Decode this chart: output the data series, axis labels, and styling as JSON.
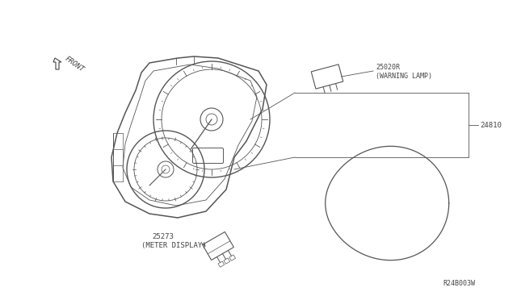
{
  "bg_color": "#ffffff",
  "line_color": "#555555",
  "text_color": "#444444",
  "part_numbers": {
    "warning_lamp": "25020R",
    "warning_lamp_desc": "(WARNING LAMP)",
    "cluster": "24810",
    "meter_display": "25273",
    "meter_display_desc": "(METER DISPLAY)"
  },
  "ref_code": "R24B003W",
  "front_label": "FRONT",
  "fig_width": 6.4,
  "fig_height": 3.72,
  "dpi": 100
}
